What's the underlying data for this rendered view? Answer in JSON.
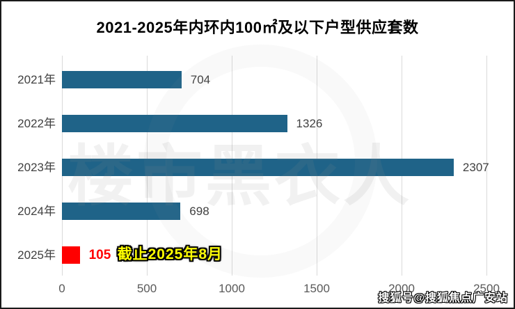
{
  "title": "2021-2025年内环内100㎡及以下户型供应套数",
  "chart_data": {
    "type": "bar",
    "orientation": "horizontal",
    "title": "2021-2025年内环内100㎡及以下户型供应套数",
    "categories": [
      "2021年",
      "2022年",
      "2023年",
      "2024年",
      "2025年"
    ],
    "values": [
      704,
      1326,
      2307,
      698,
      105
    ],
    "xlabel": "",
    "ylabel": "",
    "xlim": [
      0,
      2500
    ],
    "x_ticks": [
      "0",
      "500",
      "1000",
      "1500",
      "2000",
      "2500"
    ],
    "x_tick_values": [
      0,
      500,
      1000,
      1500,
      2000,
      2500
    ],
    "grid": true,
    "value_labels_shown": true,
    "legend": "none",
    "bar_color_default": "#1f6388",
    "highlight": {
      "category": "2025年",
      "bar_color": "#ff0000",
      "value_color": "#ff0000"
    },
    "annotation": {
      "text": "截止2025年8月",
      "attached_to": "2025年",
      "text_color": "#ffff00",
      "outline_color": "#000000"
    }
  },
  "watermarks": {
    "center_text": "楼市黑衣人",
    "bottom_right_text": "搜狐号@搜狐焦点广安站"
  },
  "colors": {
    "background": "#ffffff",
    "frame_border": "#1a1a1a",
    "bar_teal": "#1f6388",
    "bar_red": "#ff0000",
    "value_label": "#404040",
    "category_label": "#404040",
    "tick_label": "#595959",
    "gridline": "#d9d9d9",
    "annotation_yellow": "#ffff00"
  }
}
